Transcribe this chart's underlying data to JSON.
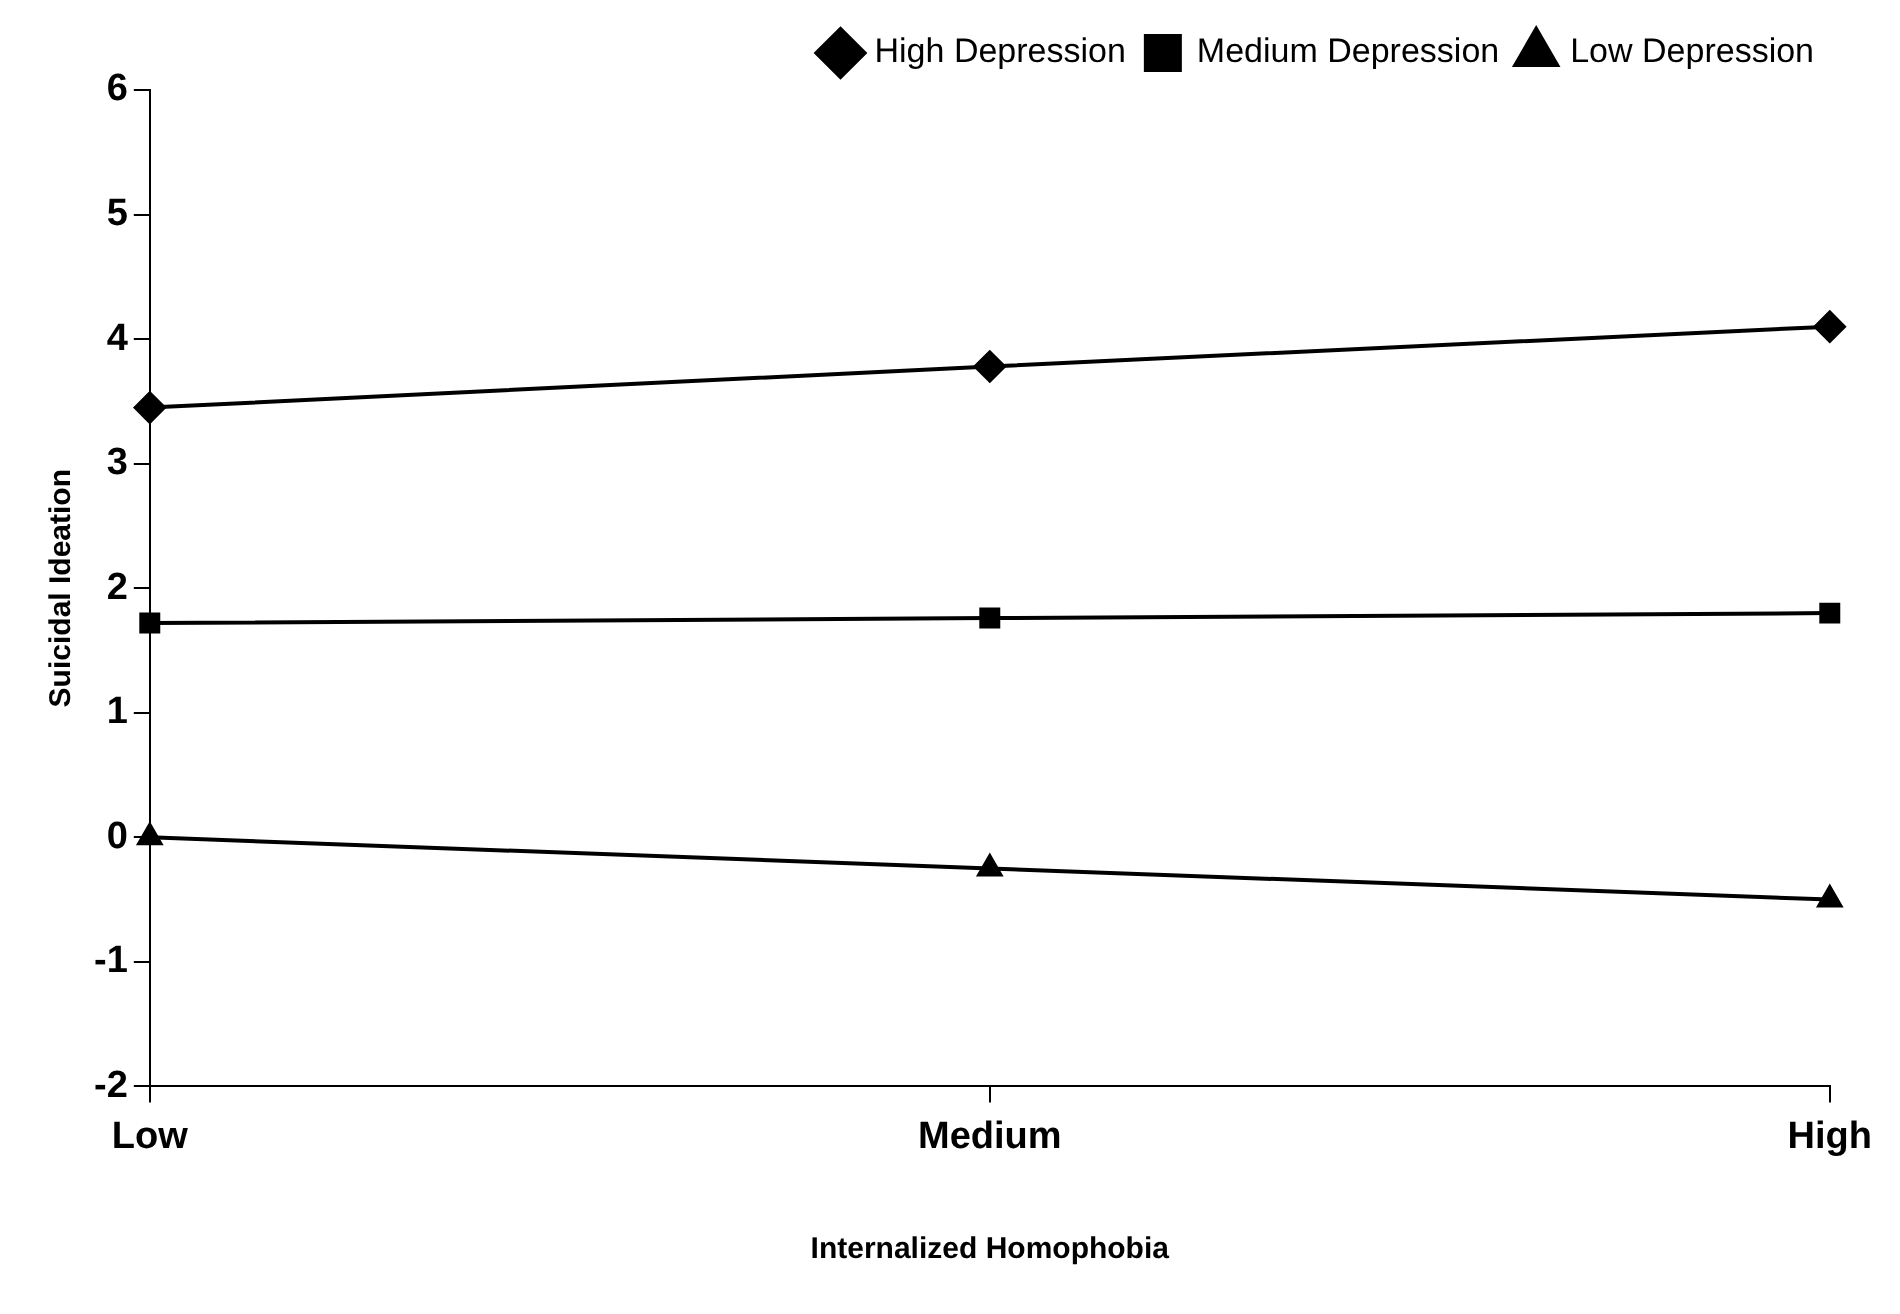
{
  "chart_data": {
    "type": "line",
    "xlabel": "Internalized Homophobia",
    "ylabel": "Suicidal Ideation",
    "categories": [
      "Low",
      "Medium",
      "High"
    ],
    "series": [
      {
        "name": "High Depression",
        "color": "#000000",
        "marker": "diamond",
        "values": [
          3.45,
          3.78,
          4.1
        ]
      },
      {
        "name": "Medium Depression",
        "color": "#000000",
        "marker": "square",
        "values": [
          1.72,
          1.76,
          1.8
        ]
      },
      {
        "name": "Low Depression",
        "color": "#000000",
        "marker": "triangle",
        "values": [
          0,
          -0.25,
          -0.5
        ]
      }
    ],
    "ylim": [
      -2,
      6
    ],
    "yticks": [
      -2,
      -1,
      0,
      1,
      2,
      3,
      4,
      5,
      6
    ],
    "grid": false,
    "legend": "top right",
    "line_style": "solid"
  }
}
